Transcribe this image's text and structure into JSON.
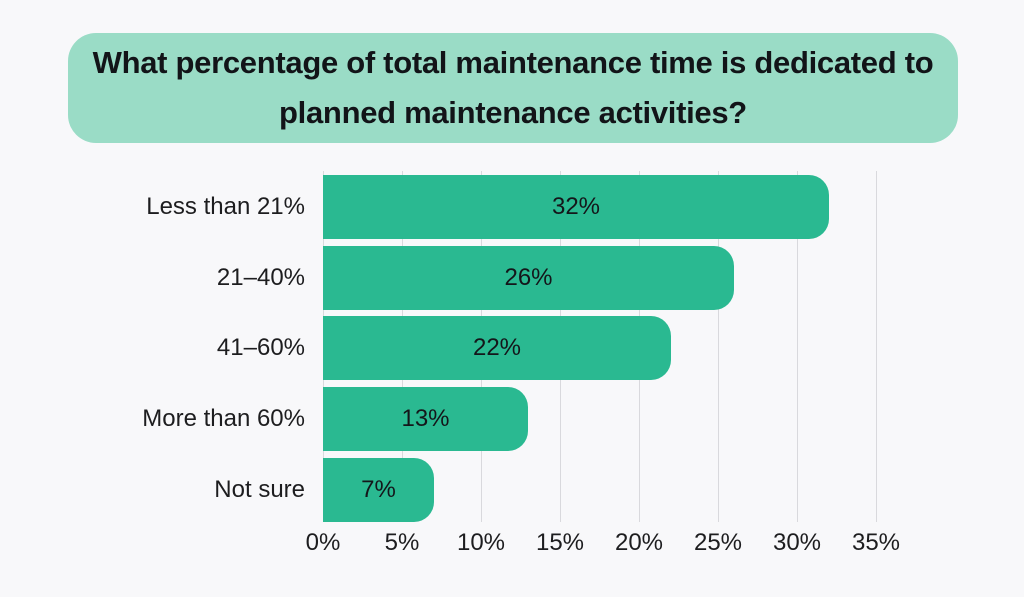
{
  "page": {
    "background_color": "#f8f8fa"
  },
  "header": {
    "title": "What percentage of total maintenance time is dedicated to planned maintenance activities?",
    "background_color": "#9adcc6",
    "text_color": "#121418"
  },
  "chart_data": {
    "type": "bar",
    "orientation": "horizontal",
    "title": "What percentage of total maintenance time is dedicated to planned maintenance activities?",
    "categories": [
      "Less than 21%",
      "21–40%",
      "41–60%",
      "More than 60%",
      "Not sure"
    ],
    "values": [
      32,
      26,
      22,
      13,
      7
    ],
    "value_labels": [
      "32%",
      "26%",
      "22%",
      "13%",
      "7%"
    ],
    "x_tick_values": [
      0,
      5,
      10,
      15,
      20,
      25,
      30,
      35
    ],
    "x_tick_labels": [
      "0%",
      "5%",
      "10%",
      "15%",
      "20%",
      "25%",
      "30%",
      "35%"
    ],
    "xlim": [
      0,
      35
    ],
    "grid": true,
    "legend": false,
    "bar_color": "#2ab991",
    "gridline_color": "#d9d9dd",
    "label_color": "#1d1d1f"
  }
}
